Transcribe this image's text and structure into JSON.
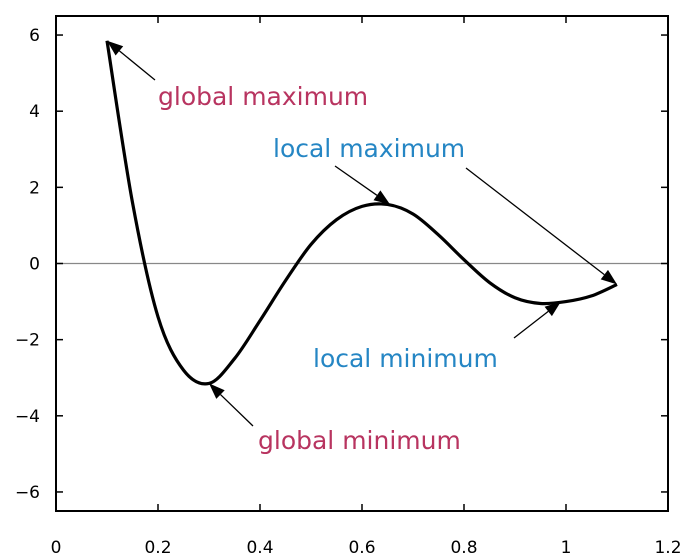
{
  "chart_data": {
    "type": "line",
    "title": "",
    "xlabel": "",
    "ylabel": "",
    "xlim": [
      0,
      1.2
    ],
    "ylim": [
      -6.5,
      6.5
    ],
    "xticks": [
      0,
      0.2,
      0.4,
      0.6,
      0.8,
      1,
      1.2
    ],
    "yticks": [
      6,
      4,
      2,
      0,
      -2,
      -4,
      -6
    ],
    "xtick_labels": [
      "0",
      "0.2",
      "0.4",
      "0.6",
      "0.8",
      "1",
      "1.2"
    ],
    "ytick_labels": [
      "6",
      "4",
      "2",
      "0",
      "−2",
      "−4",
      "−6"
    ],
    "grid": false,
    "zero_line": true,
    "series": [
      {
        "color": "#000000",
        "x": [
          0.1,
          0.15,
          0.2,
          0.25,
          0.3,
          0.35,
          0.4,
          0.45,
          0.5,
          0.55,
          0.6,
          0.65,
          0.7,
          0.75,
          0.8,
          0.85,
          0.9,
          0.95,
          1.0,
          1.05,
          1.1
        ],
        "y": [
          5.85,
          1.6,
          -1.4,
          -2.8,
          -3.15,
          -2.5,
          -1.5,
          -0.45,
          0.5,
          1.15,
          1.5,
          1.55,
          1.3,
          0.75,
          0.1,
          -0.5,
          -0.9,
          -1.05,
          -1.0,
          -0.85,
          -0.55
        ]
      }
    ],
    "annotations": [
      {
        "text": "global maximum",
        "color": "#b83460",
        "point": [
          0.1,
          5.85
        ],
        "text_anchor": [
          0.2,
          4.4
        ]
      },
      {
        "text": "local maximum",
        "color": "#2586c4",
        "point": [
          0.655,
          1.55
        ],
        "text_anchor": [
          0.56,
          2.7
        ]
      },
      {
        "text": "local maximum",
        "color": "#2586c4",
        "point": [
          1.1,
          -0.55
        ],
        "text_anchor": [
          0.56,
          2.7
        ],
        "arrow_only": true
      },
      {
        "text": "local minimum",
        "color": "#2586c4",
        "point": [
          0.99,
          -1.0
        ],
        "text_anchor": [
          0.9,
          -2.6
        ]
      },
      {
        "text": "global minimum",
        "color": "#b83460",
        "point": [
          0.3,
          -3.15
        ],
        "text_anchor": [
          0.41,
          -4.55
        ]
      }
    ]
  }
}
